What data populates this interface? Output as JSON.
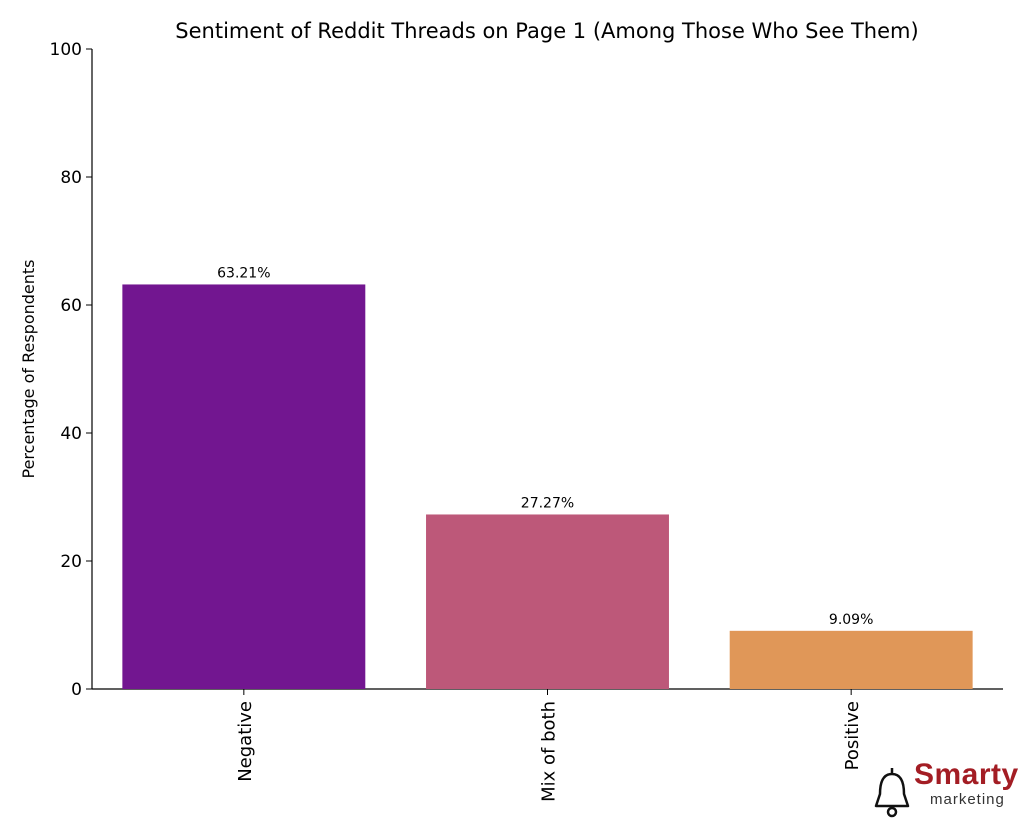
{
  "chart_data": {
    "type": "bar",
    "title": "Sentiment of Reddit Threads on Page 1 (Among Those Who See Them)",
    "xlabel": "",
    "ylabel": "Percentage of Respondents",
    "categories": [
      "Negative",
      "Mix of both",
      "Positive"
    ],
    "values": [
      63.21,
      27.27,
      9.09
    ],
    "data_labels": [
      "63.21%",
      "27.27%",
      "9.09%"
    ],
    "colors": [
      "#721690",
      "#bd5879",
      "#e09758"
    ],
    "ylim": [
      0,
      100
    ],
    "yticks": [
      0,
      20,
      40,
      60,
      80,
      100
    ],
    "grid": false,
    "legend": "none"
  },
  "logo": {
    "word": "Smarty",
    "sub": "marketing",
    "icon": "bell-icon",
    "color": "#a31d24"
  }
}
